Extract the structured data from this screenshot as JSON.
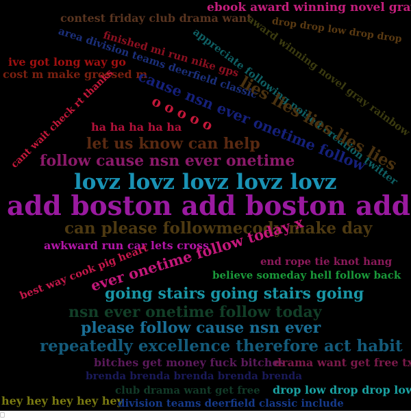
{
  "background": "#000000",
  "words": [
    {
      "text": "ebook award winning novel gray",
      "color": "#c41f7c"
    },
    {
      "text": "contest friday club drama want",
      "color": "#5a3520"
    },
    {
      "text": "drop drop low drop drop",
      "color": "#5a3a12"
    },
    {
      "text": "area division teams deerfield classic",
      "color": "#1b2f7a"
    },
    {
      "text": "award winning novel gray rainbow",
      "color": "#3b3b10"
    },
    {
      "text": "finished mi run nike gps",
      "color": "#8b1020"
    },
    {
      "text": "appreciate following poised creation twitter",
      "color": "#0e5f63"
    },
    {
      "text": "ive got long way go",
      "color": "#a01010"
    },
    {
      "text": "cost m make grossed m",
      "color": "#7a2010"
    },
    {
      "text": "lies lies lies lies lies",
      "color": "#4a3210"
    },
    {
      "text": "cause nsn ever onetime follow",
      "color": "#15207a"
    },
    {
      "text": "cant wait check rt thanks",
      "color": "#c4183a"
    },
    {
      "text": "o o o o o",
      "color": "#c4183a"
    },
    {
      "text": "ha ha ha ha ha",
      "color": "#b2123a"
    },
    {
      "text": "let us know can help",
      "color": "#5a2a12"
    },
    {
      "text": "follow cause nsn ever onetime",
      "color": "#8b1a6a"
    },
    {
      "text": "lovz lovz lovz lovz lovz",
      "color": "#1a93b5"
    },
    {
      "text": "add boston add boston add",
      "color": "#9a1aa0"
    },
    {
      "text": "can please followmecody make day",
      "color": "#4e3a12"
    },
    {
      "text": "awkward run car lets cross",
      "color": "#b316a8"
    },
    {
      "text": "ever onetime follow today x",
      "color": "#c4187a"
    },
    {
      "text": "best way cook pig heart",
      "color": "#c4184a"
    },
    {
      "text": "end rope tie knot hang",
      "color": "#8b1a5a"
    },
    {
      "text": "believe someday hell follow back",
      "color": "#1a9a3a"
    },
    {
      "text": "going stairs going stairs going",
      "color": "#1a96a6"
    },
    {
      "text": "nsn ever onetime follow today",
      "color": "#123f28"
    },
    {
      "text": "please follow cause nsn ever",
      "color": "#1a6f96"
    },
    {
      "text": "repeatedly excellence therefore act habit",
      "color": "#145a7a"
    },
    {
      "text": "bitches get money fuck bitches",
      "color": "#5a1a5a"
    },
    {
      "text": "drama want get free txt",
      "color": "#7a1a4a"
    },
    {
      "text": "brenda brenda brenda brenda brenda",
      "color": "#1a1a5a"
    },
    {
      "text": "hey hey hey hey hey",
      "color": "#7a7a12"
    },
    {
      "text": "club drama want get free",
      "color": "#123a28"
    },
    {
      "text": "drop low drop drop low",
      "color": "#1aa0a0"
    },
    {
      "text": "division teams deerfield classic include",
      "color": "#163a8a"
    }
  ]
}
